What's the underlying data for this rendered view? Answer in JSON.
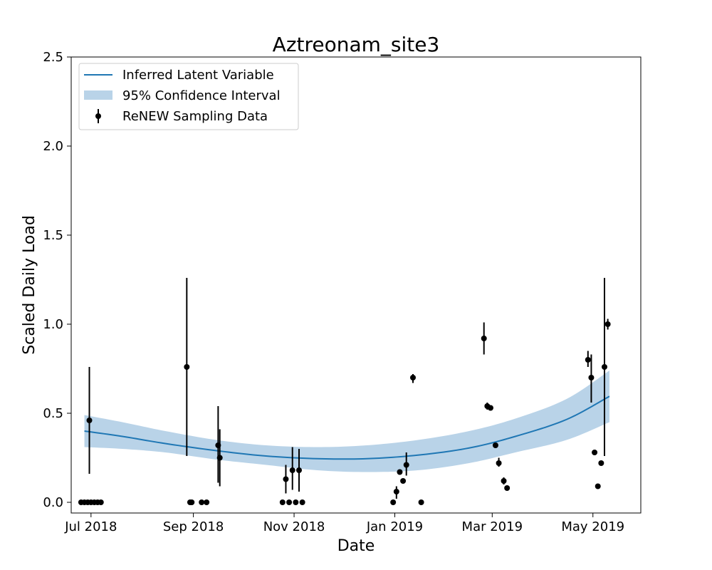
{
  "chart_data": {
    "type": "line",
    "title": "Aztreonam_site3",
    "xlabel": "Date",
    "ylabel": "Scaled Daily Load",
    "xlim": [
      "2018-06-19",
      "2019-05-30"
    ],
    "ylim": [
      -0.06,
      2.5
    ],
    "x_ticks": [
      {
        "date": "2018-07-01",
        "label": "Jul 2018"
      },
      {
        "date": "2018-09-01",
        "label": "Sep 2018"
      },
      {
        "date": "2018-11-01",
        "label": "Nov 2018"
      },
      {
        "date": "2019-01-01",
        "label": "Jan 2019"
      },
      {
        "date": "2019-03-01",
        "label": "Mar 2019"
      },
      {
        "date": "2019-05-01",
        "label": "May 2019"
      }
    ],
    "y_ticks": [
      {
        "value": 0.0,
        "label": "0.0"
      },
      {
        "value": 0.5,
        "label": "0.5"
      },
      {
        "value": 1.0,
        "label": "1.0"
      },
      {
        "value": 1.5,
        "label": "1.5"
      },
      {
        "value": 2.0,
        "label": "2.0"
      },
      {
        "value": 2.5,
        "label": "2.5"
      }
    ],
    "grid": false,
    "legend": {
      "position": "top-left",
      "entries": [
        {
          "label": "Inferred Latent Variable",
          "kind": "line"
        },
        {
          "label": "95% Confidence Interval",
          "kind": "band"
        },
        {
          "label": "ReNEW Sampling Data",
          "kind": "errorbar"
        }
      ]
    },
    "colors": {
      "line": "#1f77b4",
      "band": "#b9d3e8",
      "points": "#000000"
    },
    "series": [
      {
        "name": "Inferred Latent Variable",
        "kind": "line",
        "x": [
          "2018-06-27",
          "2018-07-20",
          "2018-08-15",
          "2018-09-15",
          "2018-10-15",
          "2018-11-15",
          "2018-12-15",
          "2019-01-15",
          "2019-02-15",
          "2019-03-15",
          "2019-04-15",
          "2019-05-11"
        ],
        "y": [
          0.4,
          0.37,
          0.33,
          0.29,
          0.26,
          0.245,
          0.245,
          0.265,
          0.305,
          0.37,
          0.465,
          0.595
        ]
      },
      {
        "name": "95% Confidence Interval",
        "kind": "band",
        "x": [
          "2018-06-27",
          "2018-07-20",
          "2018-08-15",
          "2018-09-15",
          "2018-10-15",
          "2018-11-15",
          "2018-12-15",
          "2019-01-15",
          "2019-02-15",
          "2019-03-15",
          "2019-04-15",
          "2019-05-11"
        ],
        "lower": [
          0.31,
          0.3,
          0.28,
          0.24,
          0.21,
          0.18,
          0.17,
          0.18,
          0.22,
          0.28,
          0.35,
          0.45
        ],
        "upper": [
          0.49,
          0.45,
          0.4,
          0.35,
          0.32,
          0.31,
          0.32,
          0.35,
          0.4,
          0.47,
          0.58,
          0.74
        ]
      },
      {
        "name": "ReNEW Sampling Data",
        "kind": "errorbar",
        "points": [
          {
            "x": "2018-06-25",
            "y": 0.0
          },
          {
            "x": "2018-06-27",
            "y": 0.0
          },
          {
            "x": "2018-06-29",
            "y": 0.0
          },
          {
            "x": "2018-06-30",
            "y": 0.46,
            "lo": 0.16,
            "hi": 0.76
          },
          {
            "x": "2018-07-01",
            "y": 0.0
          },
          {
            "x": "2018-07-03",
            "y": 0.0
          },
          {
            "x": "2018-07-05",
            "y": 0.0
          },
          {
            "x": "2018-07-07",
            "y": 0.0
          },
          {
            "x": "2018-08-28",
            "y": 0.76,
            "lo": 0.26,
            "hi": 1.26
          },
          {
            "x": "2018-08-30",
            "y": 0.0
          },
          {
            "x": "2018-08-31",
            "y": 0.0
          },
          {
            "x": "2018-09-06",
            "y": 0.0
          },
          {
            "x": "2018-09-09",
            "y": 0.0
          },
          {
            "x": "2018-09-16",
            "y": 0.32,
            "lo": 0.11,
            "hi": 0.54
          },
          {
            "x": "2018-09-17",
            "y": 0.25,
            "lo": 0.09,
            "hi": 0.41
          },
          {
            "x": "2018-10-25",
            "y": 0.0
          },
          {
            "x": "2018-10-27",
            "y": 0.13,
            "lo": 0.05,
            "hi": 0.21
          },
          {
            "x": "2018-10-29",
            "y": 0.0
          },
          {
            "x": "2018-10-31",
            "y": 0.18,
            "lo": 0.07,
            "hi": 0.31
          },
          {
            "x": "2018-11-02",
            "y": 0.0
          },
          {
            "x": "2018-11-04",
            "y": 0.18,
            "lo": 0.06,
            "hi": 0.3
          },
          {
            "x": "2018-11-06",
            "y": 0.0
          },
          {
            "x": "2018-12-31",
            "y": 0.0
          },
          {
            "x": "2019-01-02",
            "y": 0.06,
            "lo": 0.02,
            "hi": 0.09
          },
          {
            "x": "2019-01-04",
            "y": 0.17
          },
          {
            "x": "2019-01-06",
            "y": 0.12
          },
          {
            "x": "2019-01-08",
            "y": 0.21,
            "lo": 0.15,
            "hi": 0.28
          },
          {
            "x": "2019-01-12",
            "y": 0.7,
            "lo": 0.67,
            "hi": 0.72
          },
          {
            "x": "2019-01-17",
            "y": 0.0
          },
          {
            "x": "2019-02-24",
            "y": 0.92,
            "lo": 0.83,
            "hi": 1.01
          },
          {
            "x": "2019-02-26",
            "y": 0.54,
            "lo": 0.52,
            "hi": 0.56
          },
          {
            "x": "2019-02-28",
            "y": 0.53
          },
          {
            "x": "2019-03-03",
            "y": 0.32
          },
          {
            "x": "2019-03-05",
            "y": 0.22,
            "lo": 0.2,
            "hi": 0.25
          },
          {
            "x": "2019-03-08",
            "y": 0.12,
            "lo": 0.1,
            "hi": 0.14
          },
          {
            "x": "2019-03-10",
            "y": 0.08
          },
          {
            "x": "2019-04-28",
            "y": 0.8,
            "lo": 0.76,
            "hi": 0.85
          },
          {
            "x": "2019-04-30",
            "y": 0.7,
            "lo": 0.56,
            "hi": 0.83
          },
          {
            "x": "2019-05-02",
            "y": 0.28
          },
          {
            "x": "2019-05-04",
            "y": 0.09
          },
          {
            "x": "2019-05-06",
            "y": 0.22
          },
          {
            "x": "2019-05-08",
            "y": 0.76,
            "lo": 0.26,
            "hi": 1.26
          },
          {
            "x": "2019-05-10",
            "y": 1.0,
            "lo": 0.97,
            "hi": 1.03
          }
        ]
      }
    ]
  }
}
